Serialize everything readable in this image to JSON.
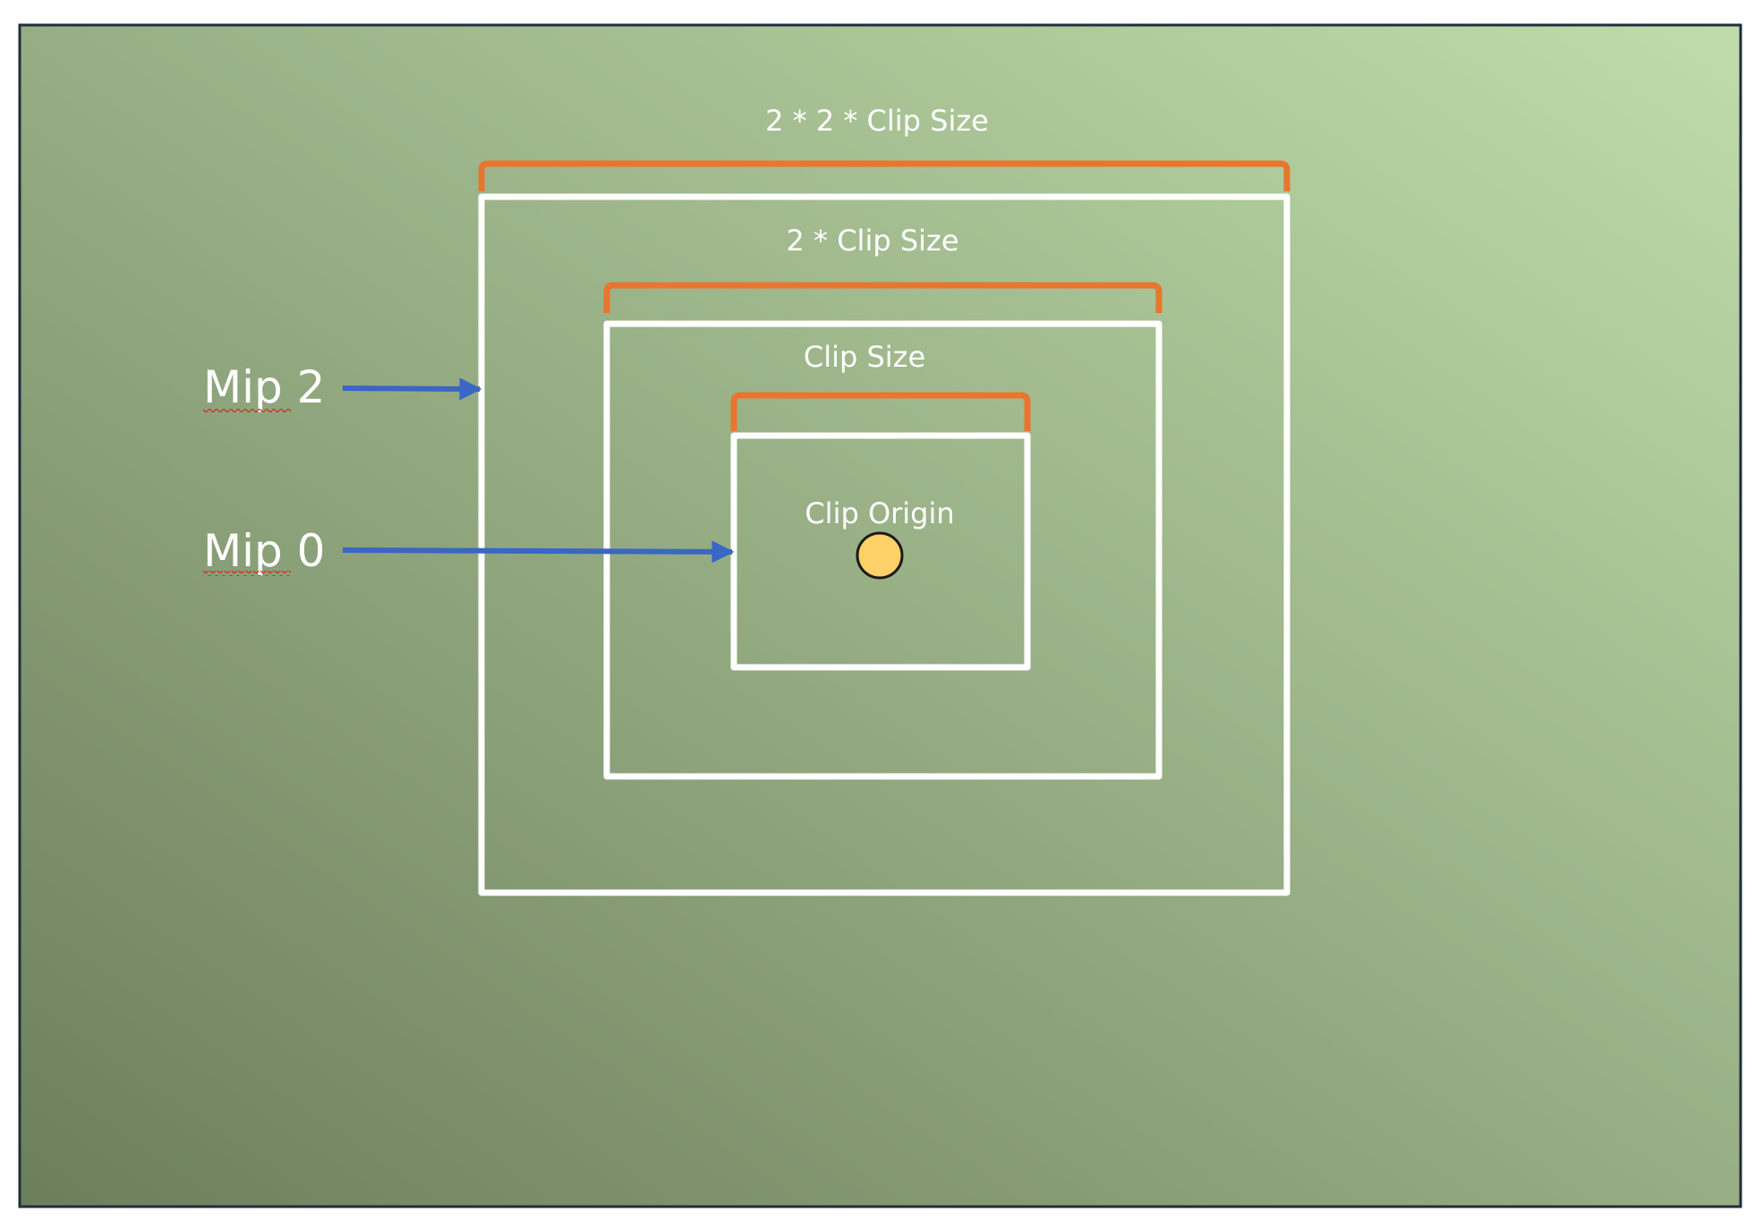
{
  "labels": {
    "outer_extent": "2 * 2 * Clip Size",
    "middle_extent": "2 * Clip Size",
    "inner_extent": "Clip Size",
    "origin": "Clip Origin",
    "mip_2": "Mip 2",
    "mip_0": "Mip 0"
  },
  "colors": {
    "background_light": "#bfdcaa",
    "background_mid": "#97ae84",
    "background_dark": "#6b7f5c",
    "frame_border": "#1f2e3d",
    "box_stroke": "#ffffff",
    "bracket": "#e8762e",
    "arrow": "#3a66c4",
    "origin_fill": "#fdd068",
    "origin_stroke": "#1a1a1a",
    "spellcheck": "#e02020"
  }
}
